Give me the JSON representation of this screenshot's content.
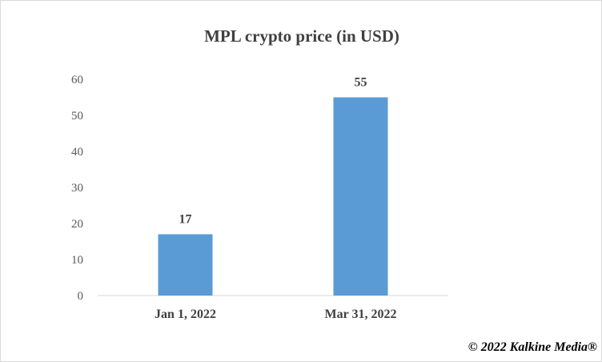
{
  "chart_data": {
    "type": "bar",
    "title": "MPL crypto price (in USD)",
    "xlabel": "",
    "ylabel": "",
    "categories": [
      "Jan 1, 2022",
      "Mar 31, 2022"
    ],
    "values": [
      17,
      55
    ],
    "data_labels": [
      "17",
      "55"
    ],
    "ylim": [
      0,
      60
    ],
    "yticks": [
      0,
      10,
      20,
      30,
      40,
      50,
      60
    ],
    "grid": false,
    "legend": "none",
    "bar_color": "#5b9bd5"
  },
  "footer": {
    "copyright": "© 2022 Kalkine Media®"
  }
}
